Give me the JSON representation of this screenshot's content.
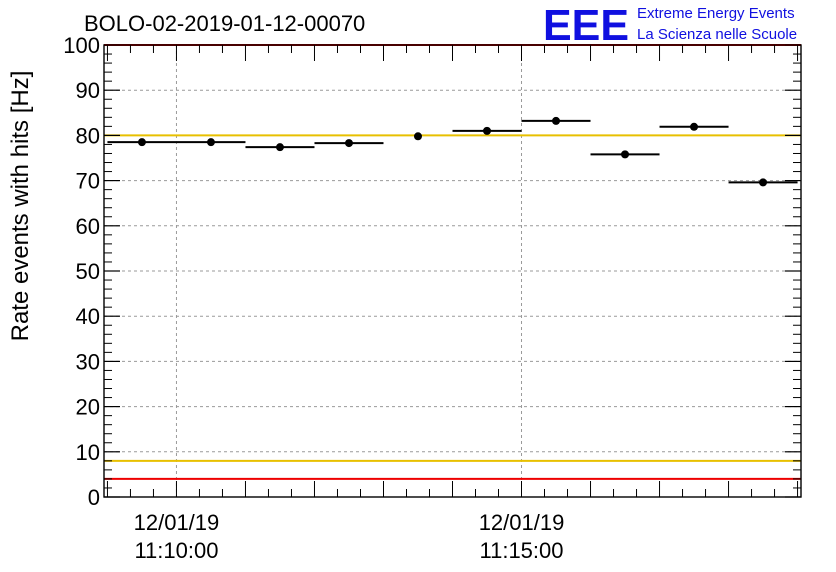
{
  "title": "BOLO-02-2019-01-12-00070",
  "logo": {
    "mark": "EEE",
    "line1": "Extreme Energy Events",
    "line2": "La Scienza nelle Scuole",
    "color": "#1010e0"
  },
  "chart_data": {
    "type": "scatter",
    "ylabel": "Rate events with hits [Hz]",
    "ylim": [
      0,
      100
    ],
    "yticks": [
      "0",
      "10",
      "20",
      "30",
      "40",
      "50",
      "60",
      "70",
      "80",
      "90",
      "100"
    ],
    "xticks": [
      {
        "date": "12/01/19",
        "time": "11:10:00",
        "minute": 10.0
      },
      {
        "date": "12/01/19",
        "time": "11:15:00",
        "minute": 15.0
      }
    ],
    "xlim_minutes": [
      8.95,
      19.05
    ],
    "grid": true,
    "points": [
      {
        "t": "11:09:30",
        "minute": 9.5,
        "value": 78.5,
        "xerr_min": 0.5,
        "yerr": 0.6
      },
      {
        "t": "11:10:30",
        "minute": 10.5,
        "value": 78.5,
        "xerr_min": 0.5,
        "yerr": 0.6
      },
      {
        "t": "11:11:30",
        "minute": 11.5,
        "value": 77.4,
        "xerr_min": 0.5,
        "yerr": 0.6
      },
      {
        "t": "11:12:30",
        "minute": 12.5,
        "value": 78.3,
        "xerr_min": 0.5,
        "yerr": 0.6
      },
      {
        "t": "11:13:30",
        "minute": 13.5,
        "value": 79.8,
        "xerr_min": 0.0,
        "yerr": 0.6
      },
      {
        "t": "11:14:30",
        "minute": 14.5,
        "value": 81.0,
        "xerr_min": 0.5,
        "yerr": 0.6
      },
      {
        "t": "11:15:30",
        "minute": 15.5,
        "value": 83.2,
        "xerr_min": 0.5,
        "yerr": 0.6
      },
      {
        "t": "11:16:30",
        "minute": 16.5,
        "value": 75.8,
        "xerr_min": 0.5,
        "yerr": 0.6
      },
      {
        "t": "11:17:30",
        "minute": 17.5,
        "value": 81.9,
        "xerr_min": 0.5,
        "yerr": 0.6
      },
      {
        "t": "11:18:30",
        "minute": 18.5,
        "value": 69.6,
        "xerr_min": 0.5,
        "yerr": 0.6
      }
    ],
    "reference_lines": [
      {
        "value": 4,
        "color": "#ee0000"
      },
      {
        "value": 8,
        "color": "#e8c000"
      },
      {
        "value": 80,
        "color": "#e8c000"
      },
      {
        "value": 100,
        "color": "#ee0000"
      }
    ],
    "marker_color": "#000000"
  }
}
